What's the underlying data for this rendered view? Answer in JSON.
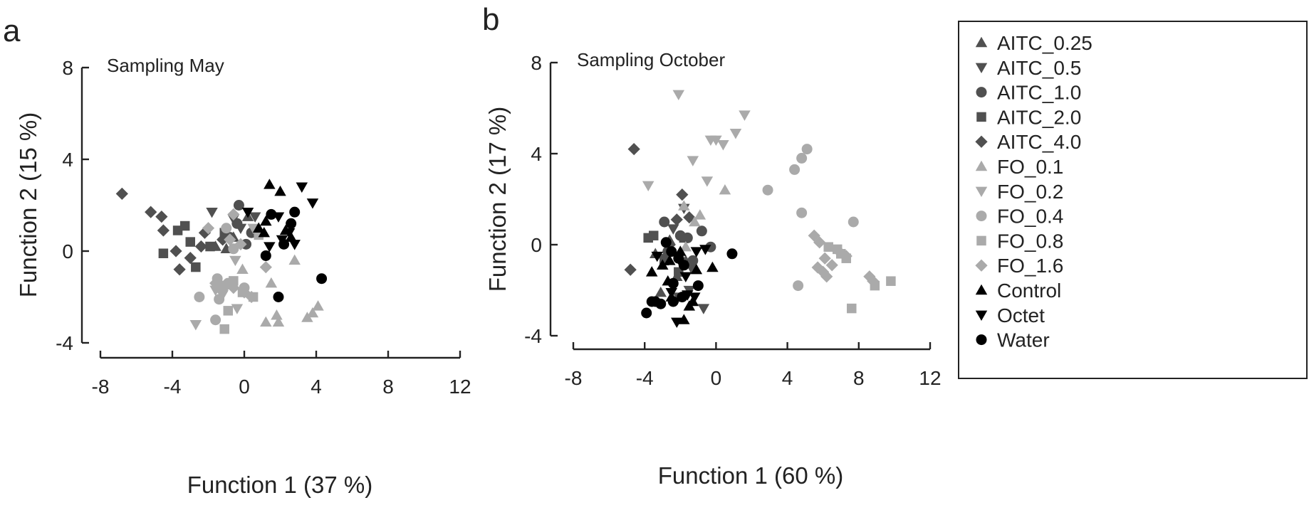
{
  "legend": [
    {
      "name": "AITC_0.25",
      "marker": "triangle-up",
      "color": "#505050"
    },
    {
      "name": "AITC_0.5",
      "marker": "triangle-down",
      "color": "#505050"
    },
    {
      "name": "AITC_1.0",
      "marker": "circle",
      "color": "#505050"
    },
    {
      "name": "AITC_2.0",
      "marker": "square",
      "color": "#505050"
    },
    {
      "name": "AITC_4.0",
      "marker": "diamond",
      "color": "#505050"
    },
    {
      "name": "FO_0.1",
      "marker": "triangle-up",
      "color": "#aaaaaa"
    },
    {
      "name": "FO_0.2",
      "marker": "triangle-down",
      "color": "#aaaaaa"
    },
    {
      "name": "FO_0.4",
      "marker": "circle",
      "color": "#aaaaaa"
    },
    {
      "name": "FO_0.8",
      "marker": "square",
      "color": "#aaaaaa"
    },
    {
      "name": "FO_1.6",
      "marker": "diamond",
      "color": "#aaaaaa"
    },
    {
      "name": "Control",
      "marker": "triangle-up",
      "color": "#000000"
    },
    {
      "name": "Octet",
      "marker": "triangle-down",
      "color": "#000000"
    },
    {
      "name": "Water",
      "marker": "circle",
      "color": "#000000"
    }
  ],
  "chart_data": [
    {
      "type": "scatter",
      "panel": "a",
      "title": "Sampling May",
      "xlabel": "Function 1 (37 %)",
      "ylabel": "Function 2 (15 %)",
      "xlim": [
        -8,
        12
      ],
      "ylim": [
        -4,
        8
      ],
      "xticks": [
        -8,
        -4,
        0,
        4,
        8,
        12
      ],
      "yticks": [
        -4,
        0,
        4,
        8
      ],
      "grid": false,
      "series": [
        {
          "name": "AITC_0.25",
          "points": [
            [
              -1.6,
              0.2
            ],
            [
              -0.6,
              0.6
            ],
            [
              0.2,
              1.5
            ],
            [
              -1.0,
              0.1
            ]
          ]
        },
        {
          "name": "AITC_0.5",
          "points": [
            [
              -1.8,
              1.7
            ],
            [
              -0.2,
              1.0
            ],
            [
              0.6,
              1.5
            ],
            [
              -0.6,
              1.4
            ]
          ]
        },
        {
          "name": "AITC_1.0",
          "points": [
            [
              -0.8,
              0.6
            ],
            [
              0.1,
              0.3
            ],
            [
              -0.4,
              1.2
            ],
            [
              -0.3,
              2.0
            ],
            [
              0.4,
              0.8
            ]
          ]
        },
        {
          "name": "AITC_2.0",
          "points": [
            [
              -4.5,
              -0.1
            ],
            [
              -3.7,
              0.9
            ],
            [
              -3.3,
              1.1
            ],
            [
              -3.0,
              0.4
            ],
            [
              -2.7,
              -0.7
            ],
            [
              -1.9,
              0.2
            ],
            [
              -1.1,
              0.8
            ]
          ]
        },
        {
          "name": "AITC_4.0",
          "points": [
            [
              -6.8,
              2.5
            ],
            [
              -5.2,
              1.7
            ],
            [
              -4.6,
              1.5
            ],
            [
              -4.5,
              0.9
            ],
            [
              -3.8,
              0.0
            ],
            [
              -3.6,
              -0.8
            ],
            [
              -3.0,
              -0.3
            ],
            [
              -2.4,
              0.2
            ],
            [
              -2.2,
              0.8
            ],
            [
              -1.2,
              0.5
            ]
          ]
        },
        {
          "name": "FO_0.1",
          "points": [
            [
              -0.1,
              -0.8
            ],
            [
              1.2,
              -3.1
            ],
            [
              1.9,
              -3.1
            ],
            [
              1.8,
              -2.8
            ],
            [
              2.8,
              -0.4
            ],
            [
              3.5,
              -2.9
            ],
            [
              3.8,
              -2.7
            ],
            [
              4.1,
              -2.4
            ],
            [
              1.5,
              -1.4
            ]
          ]
        },
        {
          "name": "FO_0.2",
          "points": [
            [
              -2.7,
              -3.2
            ],
            [
              -1.2,
              -1.9
            ],
            [
              -0.4,
              -2.5
            ],
            [
              -0.5,
              -0.4
            ],
            [
              0.5,
              1.0
            ],
            [
              -1.6,
              -1.7
            ]
          ]
        },
        {
          "name": "FO_0.4",
          "points": [
            [
              -2.5,
              -2.0
            ],
            [
              -1.6,
              -3.0
            ],
            [
              -1.4,
              -2.1
            ],
            [
              -1.5,
              -1.2
            ],
            [
              -0.9,
              -1.4
            ],
            [
              -1.0,
              1.0
            ],
            [
              -0.6,
              0.1
            ],
            [
              0.0,
              -1.6
            ]
          ]
        },
        {
          "name": "FO_0.8",
          "points": [
            [
              -1.1,
              -3.4
            ],
            [
              -0.9,
              -2.6
            ],
            [
              -0.6,
              -1.3
            ],
            [
              -0.1,
              -1.8
            ],
            [
              0.5,
              -2.0
            ],
            [
              -1.3,
              -1.5
            ],
            [
              0.8,
              0.7
            ]
          ]
        },
        {
          "name": "FO_1.6",
          "points": [
            [
              -1.6,
              -1.4
            ],
            [
              -1.3,
              -1.7
            ],
            [
              -1.0,
              -1.5
            ],
            [
              -0.6,
              -1.6
            ],
            [
              0.0,
              -1.8
            ],
            [
              0.4,
              -2.0
            ],
            [
              -2.0,
              1.0
            ],
            [
              -0.6,
              1.6
            ],
            [
              -0.2,
              0.3
            ],
            [
              1.2,
              -0.7
            ],
            [
              -0.8,
              0.5
            ]
          ]
        },
        {
          "name": "Control",
          "points": [
            [
              1.4,
              2.9
            ],
            [
              2.0,
              2.6
            ],
            [
              1.1,
              0.8
            ],
            [
              2.3,
              0.9
            ],
            [
              2.6,
              0.6
            ],
            [
              1.2,
              1.3
            ],
            [
              0.8,
              1.0
            ]
          ]
        },
        {
          "name": "Octet",
          "points": [
            [
              3.2,
              2.8
            ],
            [
              3.8,
              2.1
            ],
            [
              1.9,
              1.5
            ],
            [
              2.1,
              0.5
            ],
            [
              2.8,
              0.3
            ],
            [
              2.5,
              0.8
            ],
            [
              1.4,
              0.2
            ],
            [
              0.2,
              1.7
            ]
          ]
        },
        {
          "name": "Water",
          "points": [
            [
              1.5,
              1.6
            ],
            [
              2.8,
              1.7
            ],
            [
              2.6,
              1.2
            ],
            [
              2.2,
              0.3
            ],
            [
              1.2,
              -0.2
            ],
            [
              1.9,
              -2.0
            ],
            [
              4.3,
              -1.2
            ]
          ]
        }
      ]
    },
    {
      "type": "scatter",
      "panel": "b",
      "title": "Sampling October",
      "xlabel": "Function 1 (60 %)",
      "ylabel": "Function 2 (17 %)",
      "xlim": [
        -8,
        12
      ],
      "ylim": [
        -4,
        8
      ],
      "xticks": [
        -8,
        -4,
        0,
        4,
        8,
        12
      ],
      "yticks": [
        -4,
        0,
        4,
        8
      ],
      "grid": false,
      "series": [
        {
          "name": "AITC_0.25",
          "points": [
            [
              -3.4,
              -0.4
            ],
            [
              -2.6,
              0.2
            ],
            [
              -1.7,
              -0.7
            ],
            [
              -2.2,
              -1.4
            ],
            [
              -3.1,
              -2.1
            ]
          ]
        },
        {
          "name": "AITC_0.5",
          "points": [
            [
              -2.4,
              0.7
            ],
            [
              -1.8,
              1.6
            ],
            [
              -2.9,
              -0.6
            ],
            [
              -1.4,
              -1.0
            ],
            [
              -0.7,
              -2.8
            ],
            [
              -2.1,
              -2.3
            ],
            [
              -1.5,
              -2.0
            ]
          ]
        },
        {
          "name": "AITC_1.0",
          "points": [
            [
              -2.9,
              1.0
            ],
            [
              -2.7,
              -0.3
            ],
            [
              -1.3,
              -0.7
            ],
            [
              -0.8,
              0.6
            ],
            [
              -0.3,
              -0.1
            ],
            [
              -2.0,
              0.4
            ],
            [
              -1.6,
              0.3
            ]
          ]
        },
        {
          "name": "AITC_2.0",
          "points": [
            [
              -3.8,
              0.3
            ],
            [
              -3.5,
              0.4
            ],
            [
              -2.9,
              -0.7
            ],
            [
              -2.1,
              -1.2
            ],
            [
              -1.8,
              0.3
            ]
          ]
        },
        {
          "name": "AITC_4.0",
          "points": [
            [
              -4.6,
              4.2
            ],
            [
              -4.8,
              -1.1
            ],
            [
              -1.9,
              2.2
            ],
            [
              -2.2,
              1.1
            ],
            [
              -1.5,
              1.2
            ],
            [
              -2.6,
              0.0
            ]
          ]
        },
        {
          "name": "FO_0.1",
          "points": [
            [
              -1.8,
              1.7
            ],
            [
              -1.2,
              1.0
            ],
            [
              -0.9,
              1.3
            ],
            [
              0.5,
              2.4
            ],
            [
              -1.7,
              -0.1
            ]
          ]
        },
        {
          "name": "FO_0.2",
          "points": [
            [
              -2.1,
              6.6
            ],
            [
              -3.8,
              2.6
            ],
            [
              -1.3,
              3.7
            ],
            [
              -0.3,
              4.6
            ],
            [
              0.0,
              4.6
            ],
            [
              0.4,
              4.4
            ],
            [
              1.1,
              4.9
            ],
            [
              1.6,
              5.7
            ],
            [
              -0.5,
              2.8
            ]
          ]
        },
        {
          "name": "FO_0.4",
          "points": [
            [
              2.9,
              2.4
            ],
            [
              4.4,
              3.3
            ],
            [
              4.8,
              3.8
            ],
            [
              5.1,
              4.2
            ],
            [
              4.8,
              1.4
            ],
            [
              4.6,
              -1.8
            ],
            [
              7.7,
              1.0
            ]
          ]
        },
        {
          "name": "FO_0.8",
          "points": [
            [
              6.3,
              -0.1
            ],
            [
              6.8,
              -0.2
            ],
            [
              7.0,
              -0.4
            ],
            [
              7.3,
              -0.6
            ],
            [
              8.9,
              -1.8
            ],
            [
              9.8,
              -1.6
            ],
            [
              7.6,
              -2.8
            ]
          ]
        },
        {
          "name": "FO_1.6",
          "points": [
            [
              5.5,
              0.4
            ],
            [
              5.8,
              0.1
            ],
            [
              6.1,
              -0.6
            ],
            [
              6.5,
              -0.9
            ],
            [
              6.9,
              -0.3
            ],
            [
              5.7,
              -1.0
            ],
            [
              6.0,
              -1.2
            ],
            [
              6.2,
              -1.4
            ],
            [
              8.6,
              -1.4
            ],
            [
              8.8,
              -1.6
            ],
            [
              7.3,
              -0.5
            ]
          ]
        },
        {
          "name": "Control",
          "points": [
            [
              -3.6,
              -1.2
            ],
            [
              -2.6,
              -0.7
            ],
            [
              -2.5,
              -2.3
            ],
            [
              -1.8,
              -3.3
            ],
            [
              -2.0,
              -0.3
            ],
            [
              -1.1,
              -1.1
            ],
            [
              -1.3,
              -2.5
            ],
            [
              -2.7,
              -1.6
            ],
            [
              -3.0,
              -0.9
            ],
            [
              -0.2,
              -1.0
            ],
            [
              -1.5,
              -2.7
            ]
          ]
        },
        {
          "name": "Octet",
          "points": [
            [
              -2.2,
              -3.4
            ],
            [
              -1.6,
              -2.2
            ],
            [
              -1.2,
              -2.3
            ],
            [
              -2.5,
              -2.1
            ],
            [
              -1.7,
              -1.4
            ],
            [
              -0.6,
              -0.2
            ],
            [
              -3.3,
              -0.5
            ],
            [
              -1.9,
              -0.9
            ],
            [
              -1.1,
              -0.3
            ]
          ]
        },
        {
          "name": "Water",
          "points": [
            [
              -3.9,
              -3.0
            ],
            [
              -3.6,
              -2.5
            ],
            [
              -3.1,
              -2.6
            ],
            [
              -2.4,
              -2.5
            ],
            [
              -1.9,
              -2.3
            ],
            [
              -2.4,
              -1.7
            ],
            [
              -1.0,
              -1.8
            ],
            [
              -2.1,
              -0.6
            ],
            [
              -2.5,
              -0.3
            ],
            [
              -1.8,
              -0.9
            ],
            [
              0.9,
              -0.4
            ],
            [
              -3.4,
              -2.5
            ],
            [
              -2.8,
              0.1
            ]
          ]
        }
      ]
    }
  ]
}
